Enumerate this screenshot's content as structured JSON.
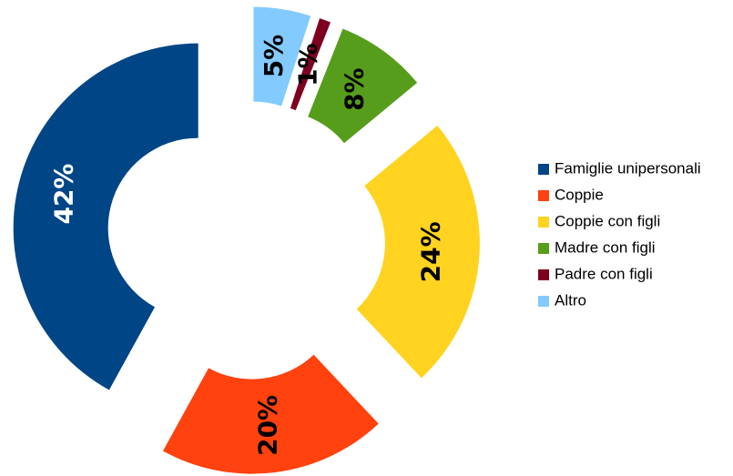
{
  "chart_data": {
    "type": "donut",
    "categories": [
      "Famiglie unipersonali",
      "Coppie",
      "Coppie con figli",
      "Madre con figli",
      "Padre con figli",
      "Altro"
    ],
    "values": [
      42,
      20,
      24,
      8,
      1,
      5
    ],
    "value_labels": [
      "42%",
      "20%",
      "24%",
      "8%",
      "1%",
      "5%"
    ],
    "colors": [
      "#004586",
      "#ff420e",
      "#ffd320",
      "#579d1c",
      "#7e0021",
      "#83caff"
    ],
    "label_colors": [
      "#ffffff",
      "#000000",
      "#000000",
      "#000000",
      "#000000",
      "#000000"
    ],
    "exploded": true,
    "direction": "counterclockwise",
    "legend": "right"
  }
}
